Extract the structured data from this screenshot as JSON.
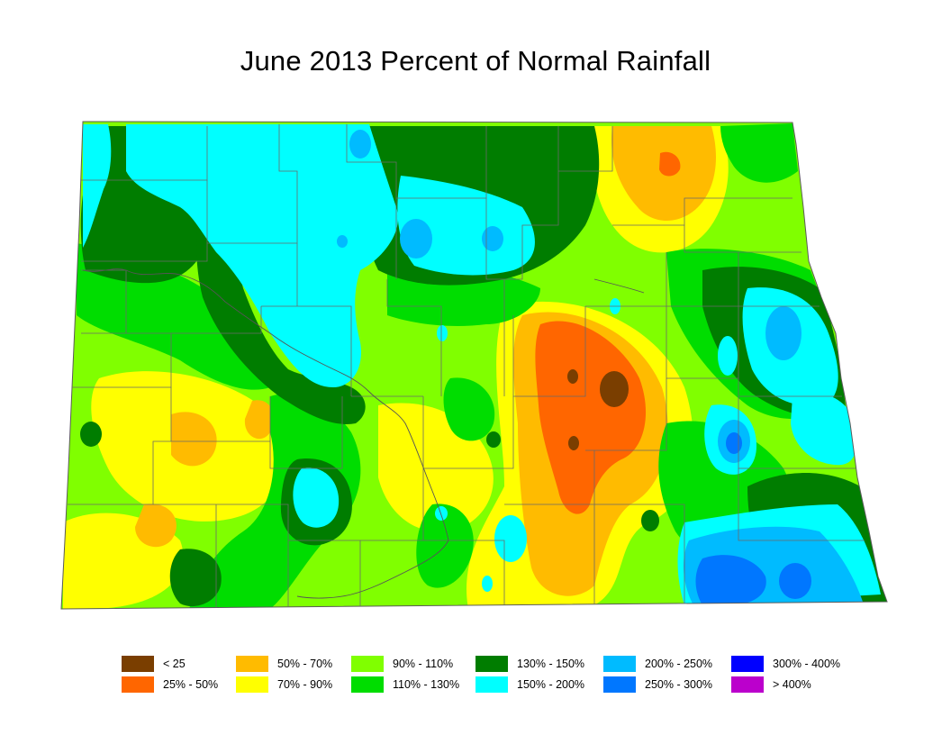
{
  "title": "June 2013 Percent of Normal Rainfall",
  "legend": [
    {
      "label": "< 25",
      "color": "#7a3e00"
    },
    {
      "label": "25% - 50%",
      "color": "#ff6600"
    },
    {
      "label": "50% - 70%",
      "color": "#ffbb00"
    },
    {
      "label": "70% - 90%",
      "color": "#ffff00"
    },
    {
      "label": "90% - 110%",
      "color": "#80ff00"
    },
    {
      "label": "110% - 130%",
      "color": "#00dd00"
    },
    {
      "label": "130% - 150%",
      "color": "#007d00"
    },
    {
      "label": "150% - 200%",
      "color": "#00ffff"
    },
    {
      "label": "200% - 250%",
      "color": "#00bbff"
    },
    {
      "label": "250% - 300%",
      "color": "#0077ff"
    },
    {
      "label": "300% - 400%",
      "color": "#0000ff"
    },
    {
      "label": "> 400%",
      "color": "#bb00cc"
    }
  ]
}
